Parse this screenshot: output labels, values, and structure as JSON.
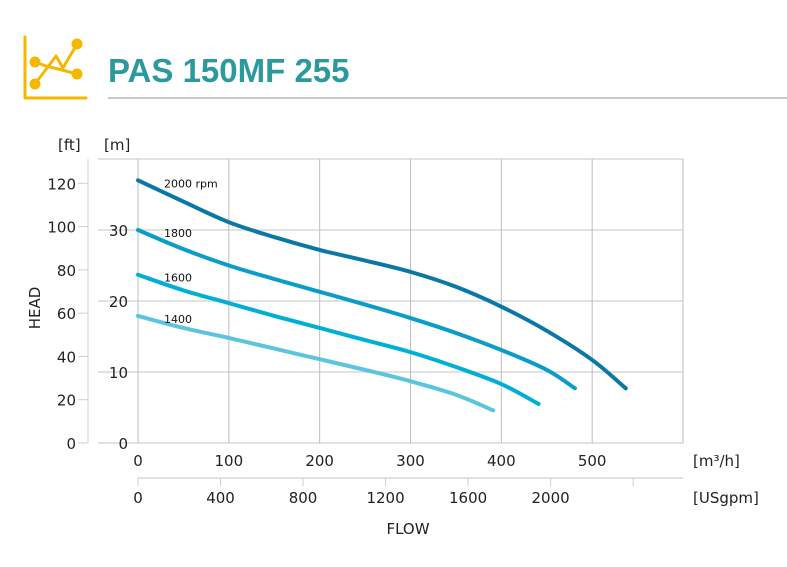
{
  "header": {
    "title": "PAS 150MF 255",
    "icon": "line-chart-icon",
    "icon_color": "#f5b800",
    "title_color": "#2a9a9e"
  },
  "chart_data": {
    "type": "line",
    "title": "PAS 150MF 255",
    "xlabel": "FLOW",
    "ylabel": "HEAD",
    "x_unit": "[m³/h]",
    "x2_unit": "[USgpm]",
    "y_unit": "[m]",
    "y2_unit": "[ft]",
    "xlim": [
      0,
      600
    ],
    "ylim": [
      0,
      40
    ],
    "x_ticks": [
      0,
      100,
      200,
      300,
      400,
      500
    ],
    "x2_ticks": [
      0,
      400,
      800,
      1200,
      1600,
      2000
    ],
    "y_ticks": [
      0,
      10,
      20,
      30
    ],
    "y2_ticks": [
      0,
      20,
      40,
      60,
      80,
      100,
      120
    ],
    "grid": true,
    "series": [
      {
        "name": "2000 rpm",
        "color": "#0a78a6",
        "points": [
          [
            0,
            37.0
          ],
          [
            50,
            34.0
          ],
          [
            100,
            31.1
          ],
          [
            150,
            29.0
          ],
          [
            200,
            27.2
          ],
          [
            250,
            25.7
          ],
          [
            300,
            24.1
          ],
          [
            350,
            22.0
          ],
          [
            400,
            19.2
          ],
          [
            450,
            15.8
          ],
          [
            500,
            11.7
          ],
          [
            537,
            7.7
          ]
        ]
      },
      {
        "name": "1800",
        "color": "#0a9dca",
        "points": [
          [
            0,
            30.0
          ],
          [
            50,
            27.3
          ],
          [
            100,
            25.0
          ],
          [
            150,
            23.1
          ],
          [
            200,
            21.3
          ],
          [
            250,
            19.5
          ],
          [
            300,
            17.6
          ],
          [
            350,
            15.5
          ],
          [
            400,
            13.1
          ],
          [
            450,
            10.3
          ],
          [
            481,
            7.7
          ]
        ]
      },
      {
        "name": "1600",
        "color": "#00afd6",
        "points": [
          [
            0,
            23.7
          ],
          [
            50,
            21.5
          ],
          [
            100,
            19.7
          ],
          [
            150,
            17.9
          ],
          [
            200,
            16.2
          ],
          [
            250,
            14.5
          ],
          [
            300,
            12.8
          ],
          [
            350,
            10.7
          ],
          [
            400,
            8.3
          ],
          [
            441,
            5.5
          ]
        ]
      },
      {
        "name": "1400",
        "color": "#5bc5df",
        "points": [
          [
            0,
            17.9
          ],
          [
            50,
            16.2
          ],
          [
            100,
            14.8
          ],
          [
            150,
            13.3
          ],
          [
            200,
            11.8
          ],
          [
            250,
            10.3
          ],
          [
            300,
            8.7
          ],
          [
            350,
            6.8
          ],
          [
            391,
            4.6
          ]
        ]
      }
    ]
  }
}
